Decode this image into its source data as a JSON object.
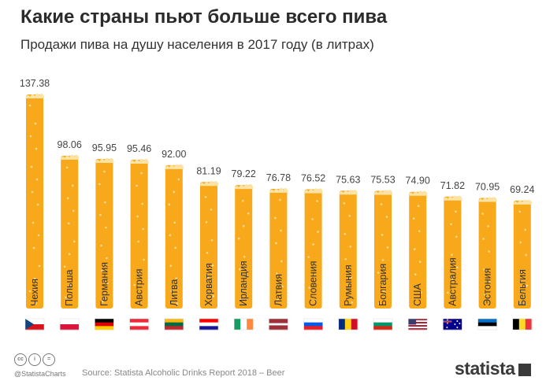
{
  "title": "Какие страны пьют больше всего пива",
  "subtitle": "Продажи пива на душу населения в 2017 году (в литрах)",
  "chart_data": {
    "type": "bar",
    "categories": [
      "Чехия",
      "Польша",
      "Германия",
      "Австрия",
      "Литва",
      "Хорватия",
      "Ирландия",
      "Латвия",
      "Словения",
      "Румыния",
      "Болгария",
      "США",
      "Австралия",
      "Эстония",
      "Бельгия"
    ],
    "values": [
      137.38,
      98.06,
      95.95,
      95.46,
      92.0,
      81.19,
      79.22,
      76.78,
      76.52,
      75.63,
      75.53,
      74.9,
      71.82,
      70.95,
      69.24
    ],
    "value_labels": [
      "137.38",
      "98.06",
      "95.95",
      "95.46",
      "92.00",
      "81.19",
      "79.22",
      "76.78",
      "76.52",
      "75.63",
      "75.53",
      "74.90",
      "71.82",
      "70.95",
      "69.24"
    ],
    "bar_color": "#f7a81b",
    "foam_color": "#fbe3a6",
    "grid": false,
    "legend": "none",
    "flags": [
      {
        "stripes": "h",
        "colors": [
          "#ffffff",
          "#d7141a"
        ],
        "extra": "czech-triangle"
      },
      {
        "stripes": "h",
        "colors": [
          "#ffffff",
          "#dc143c"
        ]
      },
      {
        "stripes": "h",
        "colors": [
          "#000000",
          "#dd0000",
          "#ffce00"
        ]
      },
      {
        "stripes": "h",
        "colors": [
          "#ed2939",
          "#ffffff",
          "#ed2939"
        ]
      },
      {
        "stripes": "h",
        "colors": [
          "#fdb913",
          "#006a44",
          "#c1272d"
        ]
      },
      {
        "stripes": "h",
        "colors": [
          "#ff0000",
          "#ffffff",
          "#171796"
        ]
      },
      {
        "stripes": "v",
        "colors": [
          "#169b62",
          "#ffffff",
          "#ff883e"
        ]
      },
      {
        "stripes": "h",
        "colors": [
          "#9e3039",
          "#ffffff",
          "#9e3039"
        ],
        "ratios": [
          2,
          1,
          2
        ]
      },
      {
        "stripes": "h",
        "colors": [
          "#ffffff",
          "#005ce5",
          "#ed1c24"
        ]
      },
      {
        "stripes": "v",
        "colors": [
          "#002b7f",
          "#fcd116",
          "#ce1126"
        ]
      },
      {
        "stripes": "h",
        "colors": [
          "#ffffff",
          "#00966e",
          "#d62612"
        ]
      },
      {
        "stripes": "h",
        "colors": [
          "#b22234",
          "#ffffff",
          "#b22234",
          "#ffffff",
          "#b22234",
          "#ffffff",
          "#b22234"
        ],
        "extra": "us-canton"
      },
      {
        "stripes": "h",
        "colors": [
          "#00008b"
        ],
        "extra": "au-stars"
      },
      {
        "stripes": "h",
        "colors": [
          "#0072ce",
          "#000000",
          "#ffffff"
        ]
      },
      {
        "stripes": "v",
        "colors": [
          "#000000",
          "#fdda24",
          "#ef3340"
        ]
      }
    ]
  },
  "footer": {
    "handle": "@StatistaCharts",
    "source": "Source: Statista Alcoholic Drinks Report 2018 – Beer",
    "logo": "statista",
    "license_icons": [
      "cc",
      "i",
      "="
    ]
  }
}
